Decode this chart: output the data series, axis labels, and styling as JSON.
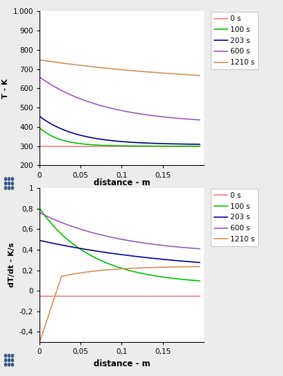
{
  "top_chart": {
    "ylabel": "T - K",
    "xlabel": "distance - m",
    "xlim": [
      0,
      0.2
    ],
    "ylim": [
      200,
      1000
    ],
    "ytick_vals": [
      200,
      300,
      400,
      500,
      600,
      700,
      800,
      900,
      1000
    ],
    "ytick_labels": [
      "200",
      "300",
      "400",
      "500",
      "600",
      "700",
      "800",
      "900",
      "1.000"
    ],
    "xtick_vals": [
      0,
      0.05,
      0.1,
      0.15
    ],
    "xtick_labels": [
      "0",
      "0,05",
      "0,1",
      "0,15"
    ],
    "series": [
      {
        "label": "0 s",
        "color": "#f08080"
      },
      {
        "label": "100 s",
        "color": "#00c000"
      },
      {
        "label": "203 s",
        "color": "#00008b"
      },
      {
        "label": "600 s",
        "color": "#9b59b6"
      },
      {
        "label": "1210 s",
        "color": "#d2905a"
      }
    ]
  },
  "bottom_chart": {
    "ylabel": "dT/dt - K/s",
    "xlabel": "distance - m",
    "xlim": [
      0,
      0.2
    ],
    "ylim": [
      -0.5,
      1.0
    ],
    "ytick_vals": [
      -0.4,
      -0.2,
      0,
      0.2,
      0.4,
      0.6,
      0.8,
      1.0
    ],
    "ytick_labels": [
      "-0,4",
      "-0,2",
      "0",
      "0,2",
      "0,4",
      "0,6",
      "0,8",
      "1"
    ],
    "xtick_vals": [
      0,
      0.05,
      0.1,
      0.15
    ],
    "xtick_labels": [
      "0",
      "0,05",
      "0,1",
      "0,15"
    ],
    "series": [
      {
        "label": "0 s",
        "color": "#f08080"
      },
      {
        "label": "100 s",
        "color": "#00c000"
      },
      {
        "label": "203 s",
        "color": "#00008b"
      },
      {
        "label": "600 s",
        "color": "#9b59b6"
      },
      {
        "label": "1210 s",
        "color": "#d2905a"
      }
    ]
  },
  "background_color": "#ececec"
}
